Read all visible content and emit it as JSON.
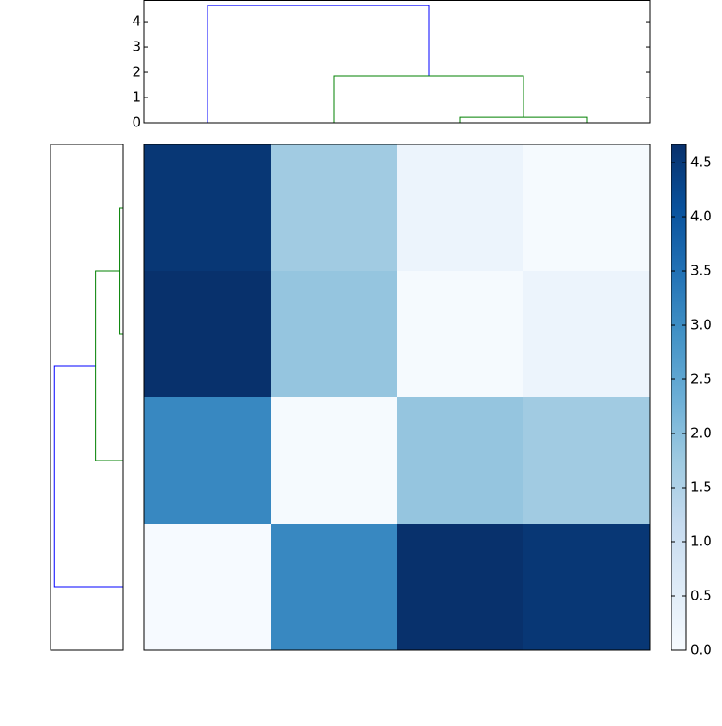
{
  "chart_data": {
    "type": "heatmap",
    "colormap": "Blues",
    "values": [
      [
        4.55,
        1.7,
        0.25,
        0.05
      ],
      [
        4.65,
        1.85,
        0.05,
        0.25
      ],
      [
        3.1,
        0.05,
        1.85,
        1.7
      ],
      [
        0.02,
        3.1,
        4.65,
        4.55
      ]
    ],
    "clim": [
      0,
      4.667
    ],
    "colorbar_ticks": [
      {
        "value": 0,
        "label": "0.0"
      },
      {
        "value": 0.5,
        "label": "0.5"
      },
      {
        "value": 1,
        "label": "1.0"
      },
      {
        "value": 1.5,
        "label": "1.5"
      },
      {
        "value": 2,
        "label": "2.0"
      },
      {
        "value": 2.5,
        "label": "2.5"
      },
      {
        "value": 3,
        "label": "3.0"
      },
      {
        "value": 3.5,
        "label": "3.5"
      },
      {
        "value": 4,
        "label": "4.0"
      },
      {
        "value": 4.5,
        "label": "4.5"
      }
    ],
    "dendrograms": {
      "top": {
        "xlim": [
          0,
          40
        ],
        "ylim": [
          0,
          4.86
        ],
        "yticks": [
          0,
          1,
          2,
          3,
          4
        ],
        "links": [
          {
            "icoord": [
              5,
              5,
              22.5,
              22.5
            ],
            "dcoord": [
              0,
              4.64,
              4.64,
              1.86
            ],
            "color": "#0000ff"
          },
          {
            "icoord": [
              15,
              15,
              30,
              30
            ],
            "dcoord": [
              0,
              1.86,
              1.86,
              0.21
            ],
            "color": "#008000"
          },
          {
            "icoord": [
              25,
              25,
              35,
              35
            ],
            "dcoord": [
              0,
              0.21,
              0.21,
              0
            ],
            "color": "#008000"
          }
        ]
      },
      "left": {
        "xlim": [
          4.9,
          0
        ],
        "ylim": [
          0,
          40
        ],
        "links": [
          {
            "icoord": [
              5,
              5,
              22.5,
              22.5
            ],
            "dcoord": [
              0,
              4.64,
              4.64,
              1.86
            ],
            "color": "#0000ff"
          },
          {
            "icoord": [
              15,
              15,
              30,
              30
            ],
            "dcoord": [
              0,
              1.86,
              1.86,
              0.21
            ],
            "color": "#008000"
          },
          {
            "icoord": [
              25,
              25,
              35,
              35
            ],
            "dcoord": [
              0,
              0.21,
              0.21,
              0
            ],
            "color": "#008000"
          }
        ]
      }
    }
  }
}
